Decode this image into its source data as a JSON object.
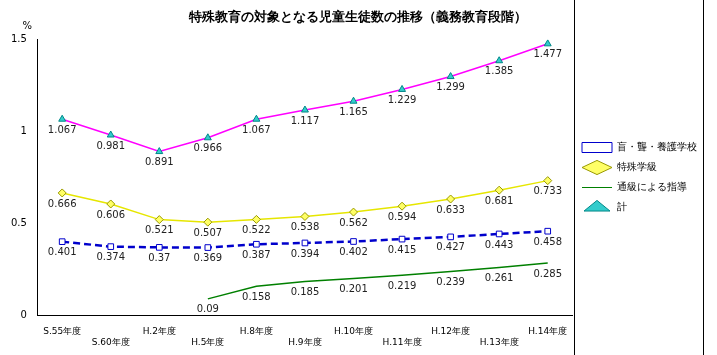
{
  "chart_data": {
    "type": "line",
    "title": "特殊教育の対象となる児童生徒数の推移（義務教育段階）",
    "y_label": "%",
    "categories": [
      "S.55年度",
      "S.60年度",
      "H.2年度",
      "H.5年度",
      "H.8年度",
      "H.9年度",
      "H.10年度",
      "H.11年度",
      "H.12年度",
      "H.13年度",
      "H.14年度"
    ],
    "series": [
      {
        "name": "盲・聾・養護学校",
        "color": "#0000cc",
        "marker": "square",
        "line_style": "dashed",
        "values": [
          0.401,
          0.374,
          0.37,
          0.369,
          0.387,
          0.394,
          0.402,
          0.415,
          0.427,
          0.443,
          0.458
        ]
      },
      {
        "name": "特殊学級",
        "color": "#e6e600",
        "marker": "diamond",
        "line_style": "solid",
        "values": [
          0.666,
          0.606,
          0.521,
          0.507,
          0.522,
          0.538,
          0.562,
          0.594,
          0.633,
          0.681,
          0.733
        ]
      },
      {
        "name": "通級による指導",
        "color": "#008000",
        "marker": "none",
        "line_style": "solid",
        "values": [
          null,
          null,
          null,
          0.09,
          0.158,
          0.185,
          0.201,
          0.219,
          0.239,
          0.261,
          0.285
        ]
      },
      {
        "name": "計",
        "color": "#ff00ff",
        "marker": "triangle",
        "line_style": "solid",
        "values": [
          1.067,
          0.981,
          0.891,
          0.966,
          1.067,
          1.117,
          1.165,
          1.229,
          1.299,
          1.385,
          1.477
        ]
      }
    ],
    "ylim": [
      0,
      1.5
    ],
    "yticks": [
      0,
      0.5,
      1,
      1.5
    ],
    "grid": false,
    "legend": "right",
    "data_labels": true
  }
}
